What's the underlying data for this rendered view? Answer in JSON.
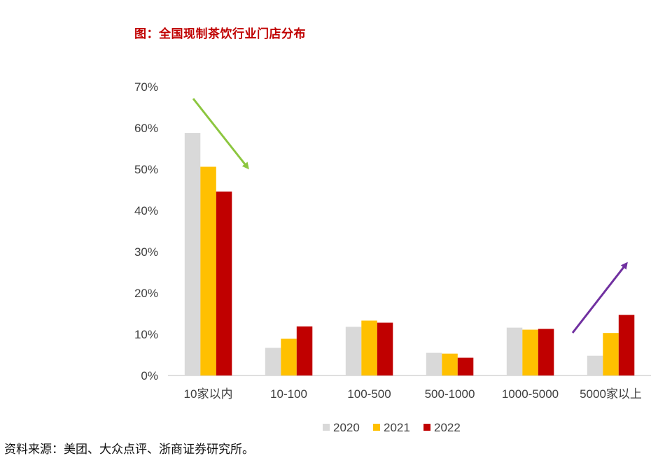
{
  "title": "图：全国现制茶饮行业门店分布",
  "source": "资料来源：美团、大众点评、浙商证券研究所。",
  "colors": {
    "2020": "#D9D9D9",
    "2021": "#FFC000",
    "2022": "#C00000",
    "arrow_down": "#8CC63F",
    "arrow_up": "#7030A0"
  },
  "chart_data": {
    "type": "bar",
    "title": "图：全国现制茶饮行业门店分布",
    "categories": [
      "10家以内",
      "10-100",
      "100-500",
      "500-1000",
      "1000-5000",
      "5000家以上"
    ],
    "series": [
      {
        "name": "2020",
        "values": [
          58.8,
          6.7,
          11.8,
          5.5,
          11.6,
          4.8
        ]
      },
      {
        "name": "2021",
        "values": [
          50.6,
          8.9,
          13.3,
          5.3,
          11.1,
          10.3
        ]
      },
      {
        "name": "2022",
        "values": [
          44.6,
          11.9,
          12.8,
          4.3,
          11.3,
          14.7
        ]
      }
    ],
    "yticks": [
      "0%",
      "10%",
      "20%",
      "30%",
      "40%",
      "50%",
      "60%",
      "70%"
    ],
    "ylim": [
      0,
      70
    ],
    "xlabel": "",
    "ylabel": "",
    "grid": false,
    "legend": "bottom",
    "annotations": [
      {
        "type": "arrow",
        "direction": "down",
        "near": "10家以内",
        "color": "#8CC63F"
      },
      {
        "type": "arrow",
        "direction": "up",
        "near": "5000家以上",
        "color": "#7030A0"
      }
    ]
  }
}
